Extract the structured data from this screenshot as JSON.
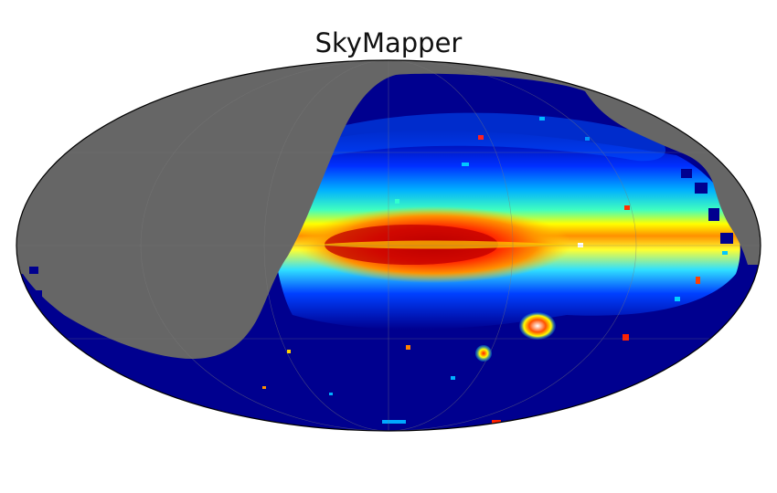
{
  "title": "SkyMapper",
  "map": {
    "projection": "mollweide",
    "colormap": "jet",
    "colors": {
      "no_coverage": "#666666",
      "outline": "#000000",
      "graticule": "#7a7a7a"
    }
  }
}
